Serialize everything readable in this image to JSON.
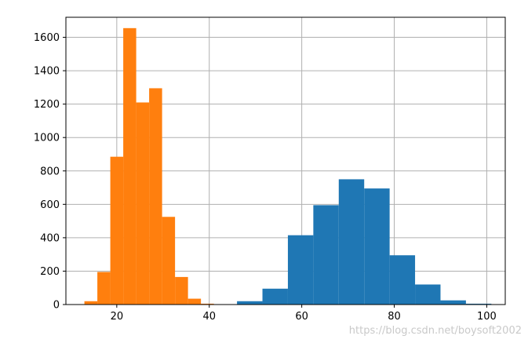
{
  "chart_data": {
    "type": "histogram",
    "title": "",
    "xlabel": "",
    "ylabel": "",
    "xlim": [
      9,
      104
    ],
    "ylim": [
      0,
      1720
    ],
    "xticks": [
      20,
      40,
      60,
      80,
      100
    ],
    "yticks": [
      0,
      200,
      400,
      600,
      800,
      1000,
      1200,
      1400,
      1600
    ],
    "grid": true,
    "series": [
      {
        "color": "#1f77b4",
        "bins": [
          {
            "x0": 46.0,
            "x1": 51.5,
            "count": 20
          },
          {
            "x0": 51.5,
            "x1": 57.0,
            "count": 95
          },
          {
            "x0": 57.0,
            "x1": 62.5,
            "count": 415
          },
          {
            "x0": 62.5,
            "x1": 68.0,
            "count": 595
          },
          {
            "x0": 68.0,
            "x1": 73.5,
            "count": 750
          },
          {
            "x0": 73.5,
            "x1": 79.0,
            "count": 695
          },
          {
            "x0": 79.0,
            "x1": 84.5,
            "count": 295
          },
          {
            "x0": 84.5,
            "x1": 90.0,
            "count": 120
          },
          {
            "x0": 90.0,
            "x1": 95.5,
            "count": 25
          },
          {
            "x0": 95.5,
            "x1": 101.0,
            "count": 5
          }
        ]
      },
      {
        "color": "#ff7f0e",
        "bins": [
          {
            "x0": 13.0,
            "x1": 15.8,
            "count": 20
          },
          {
            "x0": 15.8,
            "x1": 18.6,
            "count": 195
          },
          {
            "x0": 18.6,
            "x1": 21.4,
            "count": 885
          },
          {
            "x0": 21.4,
            "x1": 24.2,
            "count": 1655
          },
          {
            "x0": 24.2,
            "x1": 27.0,
            "count": 1210
          },
          {
            "x0": 27.0,
            "x1": 29.8,
            "count": 1295
          },
          {
            "x0": 29.8,
            "x1": 32.6,
            "count": 525
          },
          {
            "x0": 32.6,
            "x1": 35.4,
            "count": 165
          },
          {
            "x0": 35.4,
            "x1": 38.2,
            "count": 35
          },
          {
            "x0": 38.2,
            "x1": 41.0,
            "count": 5
          }
        ]
      }
    ]
  },
  "watermark": "https://blog.csdn.net/boysoft2002"
}
